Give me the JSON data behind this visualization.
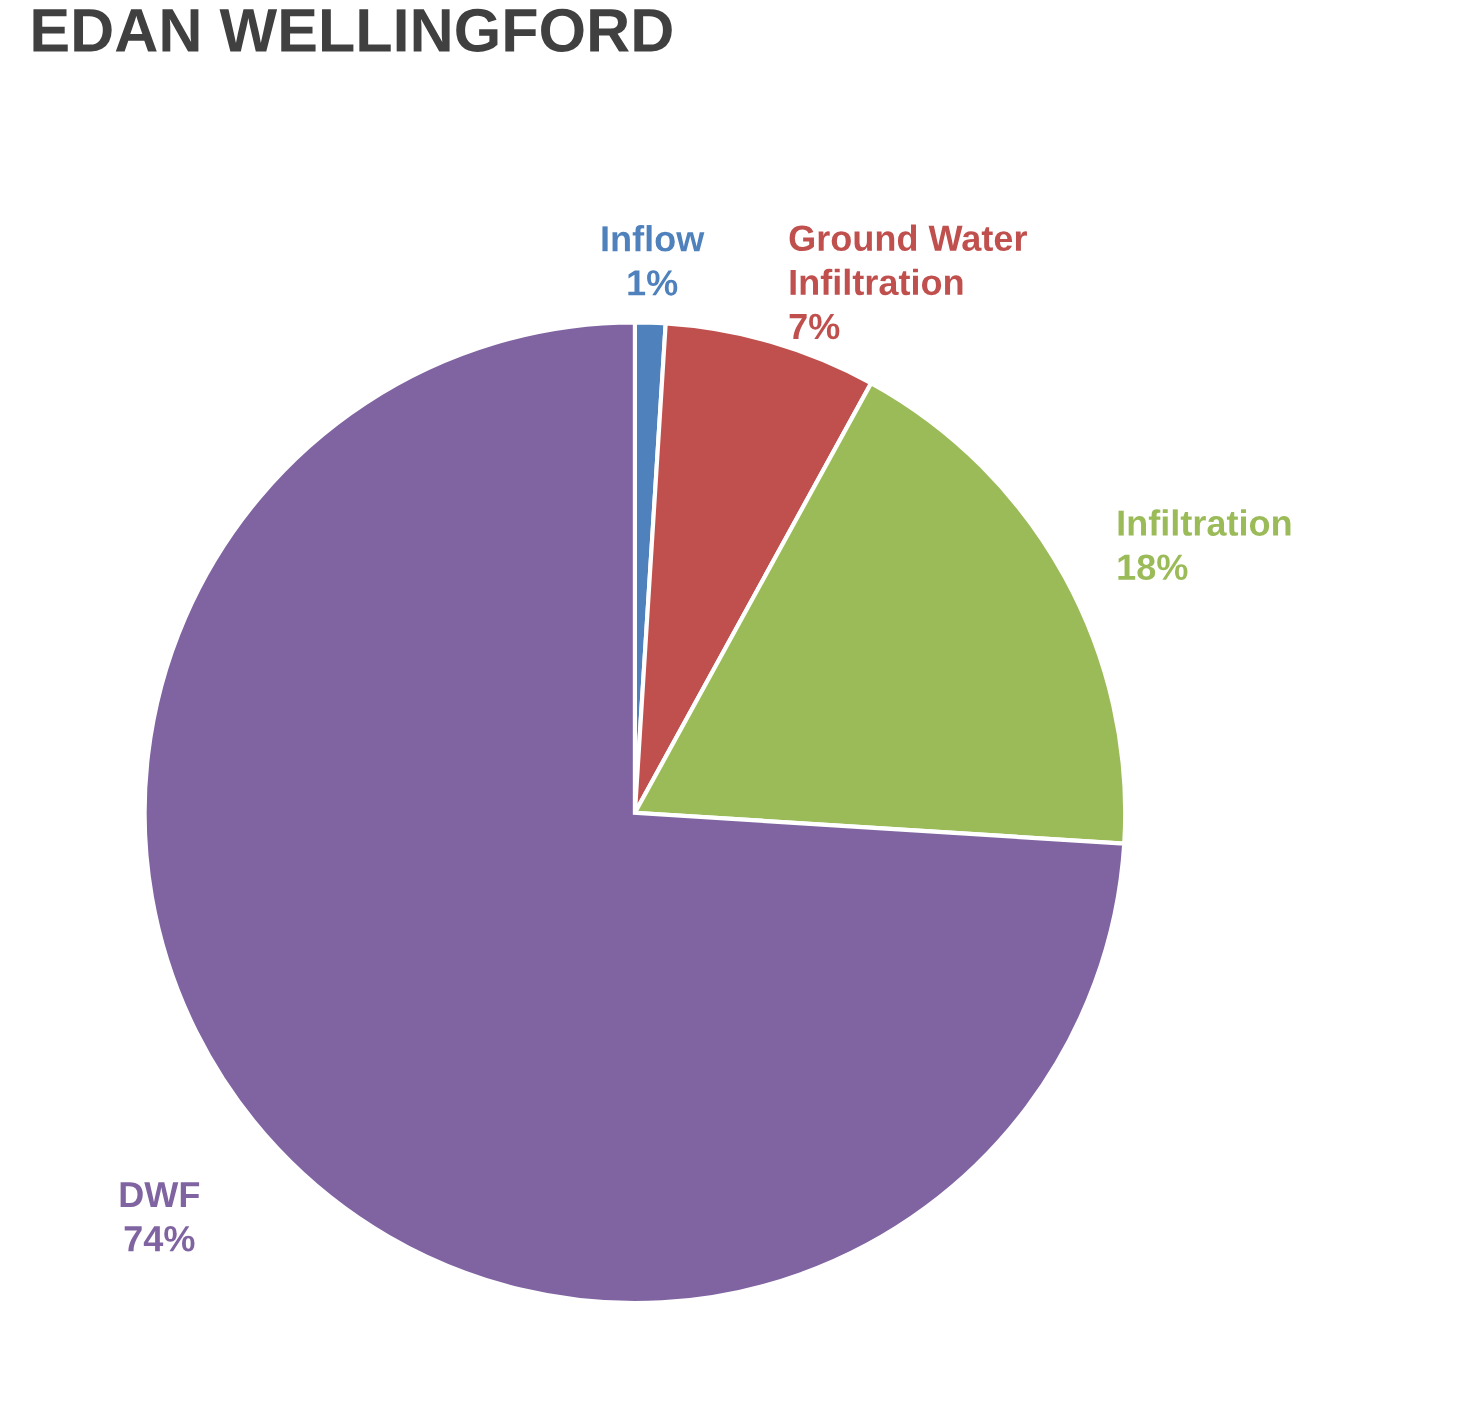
{
  "chart_data": {
    "type": "pie",
    "title": "EDAN WELLINGFORD",
    "categories": [
      "Inflow",
      "Ground Water\nInfiltration",
      "Infiltration",
      "DWF"
    ],
    "values": [
      1,
      7,
      18,
      74
    ],
    "colors": [
      "#4f81bd",
      "#c0504d",
      "#9bbb59",
      "#8064a2"
    ],
    "value_labels": [
      "1%",
      "7%",
      "18%",
      "74%"
    ],
    "legend": false
  }
}
